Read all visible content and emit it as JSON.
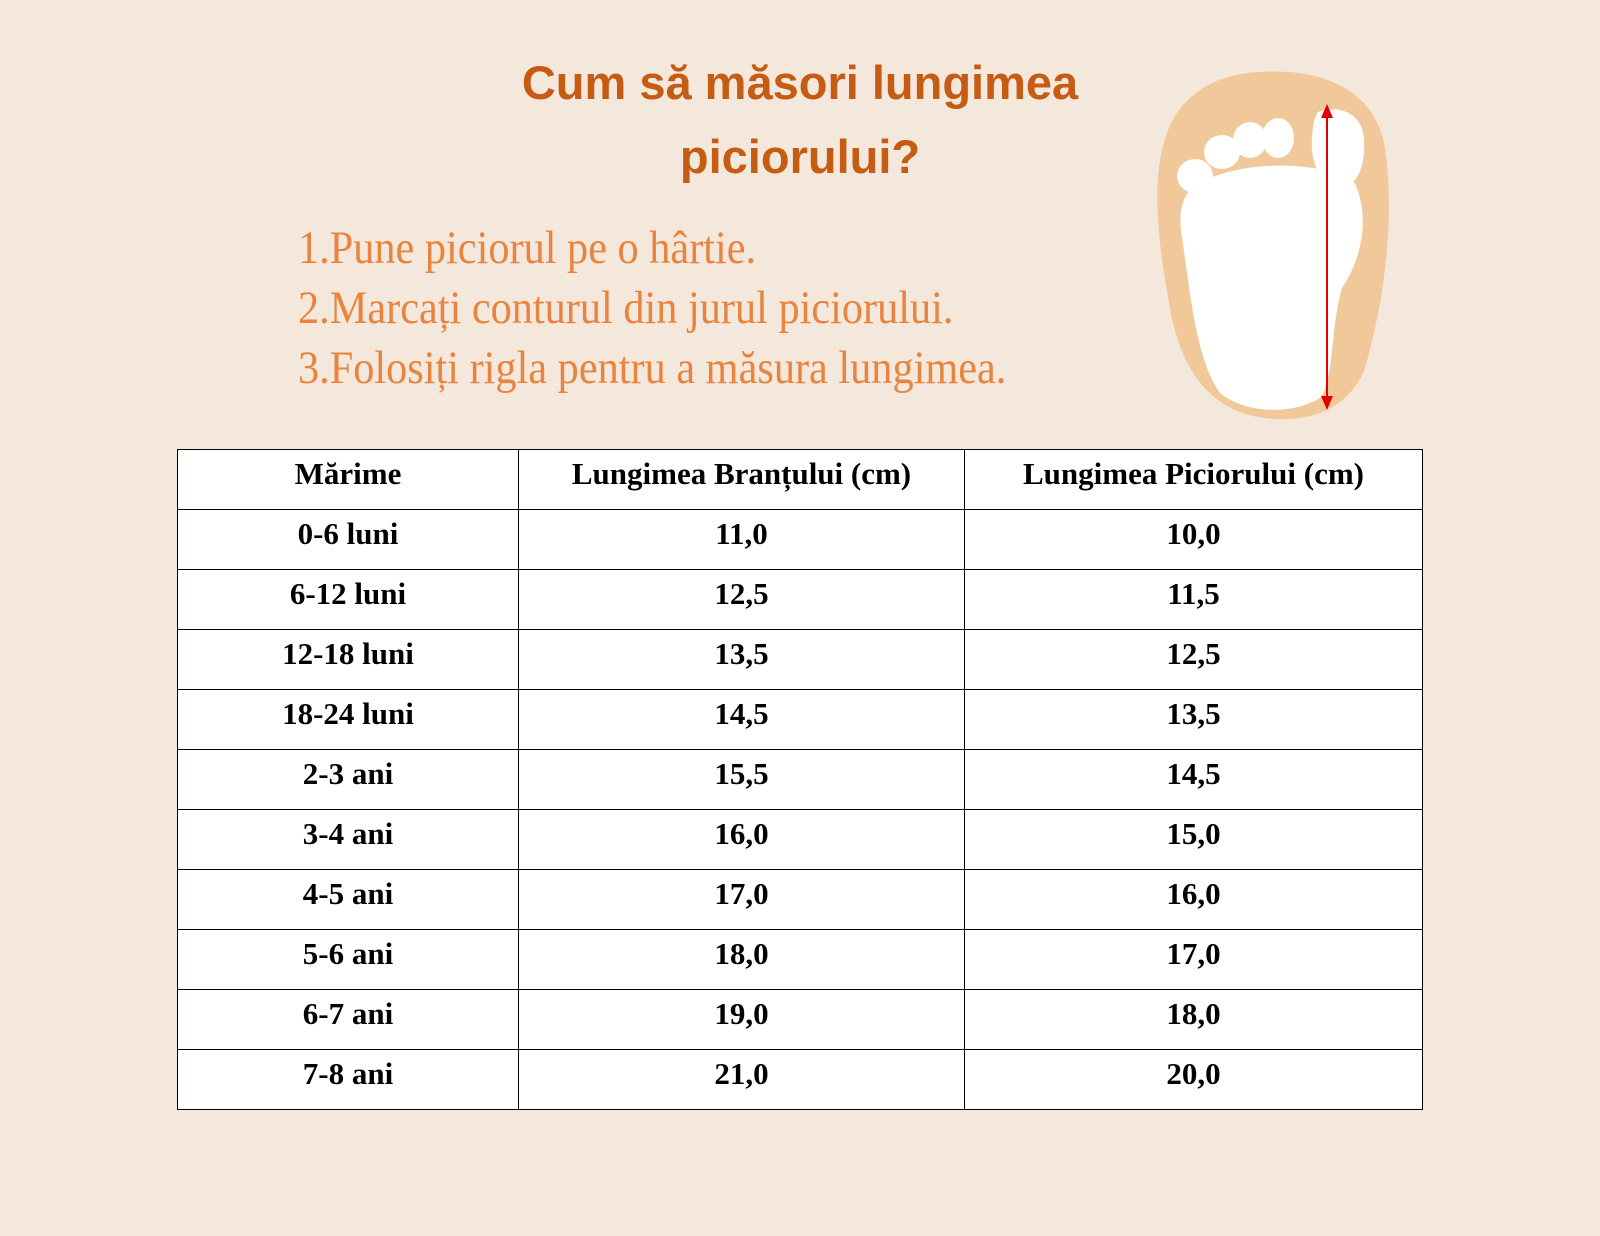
{
  "title": {
    "line1": "Cum să măsori lungimea",
    "line2": "piciorului?"
  },
  "steps": [
    "1.Pune piciorul pe o hârtie.",
    "2.Marcați conturul din jurul piciorului.",
    "3.Folosiți rigla pentru a măsura lungimea."
  ],
  "colors": {
    "title": "#c65b14",
    "steps": "#e9843f",
    "background": "#f4e7dc",
    "foot_outline": "#f0c899",
    "arrow": "#e00000"
  },
  "illustration": {
    "icon": "foot-measure-icon"
  },
  "table": {
    "headers": [
      "Mărime",
      "Lungimea Branțului  (cm)",
      "Lungimea Piciorului  (cm)"
    ],
    "rows": [
      [
        "0-6 luni",
        "11,0",
        "10,0"
      ],
      [
        "6-12 luni",
        "12,5",
        "11,5"
      ],
      [
        "12-18 luni",
        "13,5",
        "12,5"
      ],
      [
        "18-24 luni",
        "14,5",
        "13,5"
      ],
      [
        "2-3 ani",
        "15,5",
        "14,5"
      ],
      [
        "3-4 ani",
        "16,0",
        "15,0"
      ],
      [
        "4-5 ani",
        "17,0",
        "16,0"
      ],
      [
        "5-6 ani",
        "18,0",
        "17,0"
      ],
      [
        "6-7 ani",
        "19,0",
        "18,0"
      ],
      [
        "7-8 ani",
        "21,0",
        "20,0"
      ]
    ]
  }
}
